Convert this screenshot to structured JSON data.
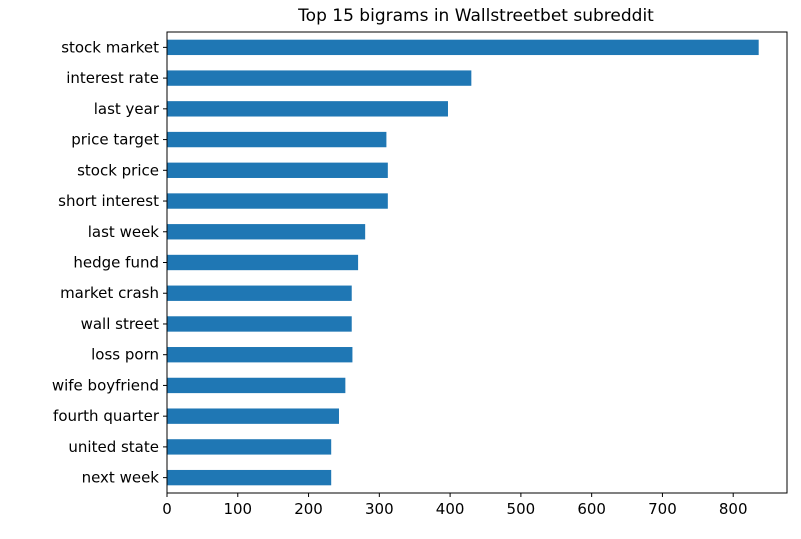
{
  "chart_data": {
    "type": "bar",
    "orientation": "horizontal",
    "title": "Top 15 bigrams in Wallstreetbet subreddit",
    "xlabel": "",
    "ylabel": "",
    "categories": [
      "stock market",
      "interest rate",
      "last year",
      "price target",
      "stock price",
      "short interest",
      "last week",
      "hedge fund",
      "market crash",
      "wall street",
      "loss porn",
      "wife boyfriend",
      "fourth quarter",
      "united state",
      "next week"
    ],
    "values": [
      836,
      430,
      397,
      310,
      312,
      312,
      280,
      270,
      261,
      261,
      262,
      252,
      243,
      232,
      232
    ],
    "xlim": [
      0,
      876
    ],
    "xticks": [
      0,
      100,
      200,
      300,
      400,
      500,
      600,
      700,
      800
    ],
    "grid": false,
    "legend": "none",
    "bar_color": "#1f77b4"
  }
}
